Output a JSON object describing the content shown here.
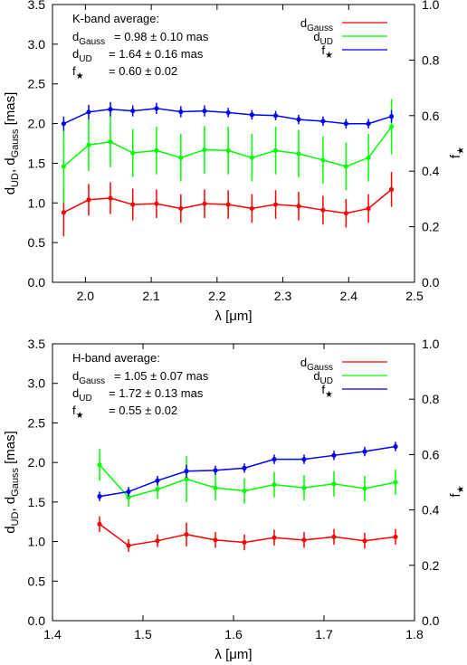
{
  "chart_data": [
    {
      "type": "line",
      "panel": "K-band",
      "xlabel": "λ [μm]",
      "ylabel": "d_UD, d_Gauss [mas]",
      "y2label": "f★",
      "xlim": [
        1.95,
        2.5
      ],
      "ylim": [
        0,
        3.5
      ],
      "y2lim": [
        0,
        1.0
      ],
      "xticks": [
        "2.0",
        "2.1",
        "2.2",
        "2.3",
        "2.4",
        "2.5"
      ],
      "yticks": [
        "0.0",
        "0.5",
        "1.0",
        "1.5",
        "2.0",
        "2.5",
        "3.0",
        "3.5"
      ],
      "y2ticks": [
        "0.0",
        "0.2",
        "0.4",
        "0.6",
        "0.8",
        "1.0"
      ],
      "annotation": {
        "title": "K-band average:",
        "lines": [
          {
            "sym": "d",
            "sub": "Gauss",
            "text": "= 0.98 ± 0.10 mas"
          },
          {
            "sym": "d",
            "sub": "UD",
            "text": "= 1.64  ± 0.16 mas"
          },
          {
            "sym": "f",
            "sub": "★",
            "text": "= 0.60 ± 0.02"
          }
        ]
      },
      "legend_position": "top-right",
      "x": [
        1.967,
        2.005,
        2.038,
        2.072,
        2.108,
        2.145,
        2.181,
        2.217,
        2.253,
        2.289,
        2.324,
        2.361,
        2.396,
        2.43,
        2.465
      ],
      "series": [
        {
          "name": "d_Gauss",
          "label": "d",
          "sub": "Gauss",
          "color": "#ff0000",
          "axis": "left",
          "y": [
            0.88,
            1.04,
            1.06,
            0.98,
            0.99,
            0.93,
            0.99,
            0.98,
            0.93,
            0.98,
            0.96,
            0.91,
            0.87,
            0.93,
            1.17
          ],
          "err": [
            0.3,
            0.2,
            0.2,
            0.2,
            0.18,
            0.18,
            0.18,
            0.18,
            0.18,
            0.18,
            0.18,
            0.18,
            0.18,
            0.18,
            0.22
          ]
        },
        {
          "name": "d_UD",
          "label": "d",
          "sub": "UD",
          "color": "#00ff00",
          "axis": "left",
          "y": [
            1.46,
            1.73,
            1.77,
            1.63,
            1.66,
            1.57,
            1.67,
            1.66,
            1.57,
            1.66,
            1.62,
            1.54,
            1.46,
            1.57,
            1.96
          ],
          "err": [
            0.46,
            0.33,
            0.32,
            0.3,
            0.3,
            0.3,
            0.3,
            0.3,
            0.3,
            0.3,
            0.3,
            0.3,
            0.3,
            0.3,
            0.35
          ]
        },
        {
          "name": "f★",
          "label": "f",
          "sub": "★",
          "color": "#0000ff",
          "axis": "right",
          "y": [
            0.571,
            0.613,
            0.623,
            0.617,
            0.626,
            0.614,
            0.617,
            0.611,
            0.603,
            0.6,
            0.586,
            0.58,
            0.571,
            0.571,
            0.597
          ],
          "err": [
            0.026,
            0.026,
            0.026,
            0.02,
            0.02,
            0.02,
            0.02,
            0.017,
            0.017,
            0.017,
            0.017,
            0.017,
            0.017,
            0.017,
            0.023
          ]
        }
      ]
    },
    {
      "type": "line",
      "panel": "H-band",
      "xlabel": "λ [μm]",
      "ylabel": "d_UD, d_Gauss [mas]",
      "y2label": "f★",
      "xlim": [
        1.4,
        1.8
      ],
      "ylim": [
        0,
        3.5
      ],
      "y2lim": [
        0,
        1.0
      ],
      "xticks": [
        "1.4",
        "1.5",
        "1.6",
        "1.7",
        "1.8"
      ],
      "yticks": [
        "0.0",
        "0.5",
        "1.0",
        "1.5",
        "2.0",
        "2.5",
        "3.0",
        "3.5"
      ],
      "y2ticks": [
        "0.0",
        "0.2",
        "0.4",
        "0.6",
        "0.8",
        "1.0"
      ],
      "annotation": {
        "title": "H-band average:",
        "lines": [
          {
            "sym": "d",
            "sub": "Gauss",
            "text": "= 1.05 ± 0.07 mas"
          },
          {
            "sym": "d",
            "sub": "UD",
            "text": "= 1.72 ± 0.13 mas"
          },
          {
            "sym": "f",
            "sub": "★",
            "text": "= 0.55 ± 0.02"
          }
        ]
      },
      "legend_position": "top-right",
      "x": [
        1.452,
        1.484,
        1.516,
        1.548,
        1.58,
        1.612,
        1.645,
        1.678,
        1.711,
        1.745,
        1.779
      ],
      "series": [
        {
          "name": "d_Gauss",
          "label": "d",
          "sub": "Gauss",
          "color": "#ff0000",
          "axis": "left",
          "y": [
            1.22,
            0.95,
            1.01,
            1.09,
            1.02,
            0.99,
            1.05,
            1.02,
            1.06,
            1.01,
            1.06
          ],
          "err": [
            0.1,
            0.08,
            0.08,
            0.15,
            0.1,
            0.1,
            0.1,
            0.1,
            0.1,
            0.1,
            0.1
          ]
        },
        {
          "name": "d_UD",
          "label": "d",
          "sub": "UD",
          "color": "#00ff00",
          "axis": "left",
          "y": [
            1.97,
            1.56,
            1.66,
            1.79,
            1.68,
            1.64,
            1.72,
            1.68,
            1.73,
            1.67,
            1.75
          ],
          "err": [
            0.2,
            0.12,
            0.12,
            0.29,
            0.16,
            0.16,
            0.16,
            0.16,
            0.16,
            0.16,
            0.16
          ]
        },
        {
          "name": "f★",
          "label": "f",
          "sub": "★",
          "color": "#0000ff",
          "axis": "right",
          "y": [
            0.449,
            0.466,
            0.506,
            0.54,
            0.543,
            0.551,
            0.583,
            0.583,
            0.597,
            0.611,
            0.629
          ],
          "err": [
            0.017,
            0.017,
            0.017,
            0.023,
            0.017,
            0.017,
            0.017,
            0.017,
            0.017,
            0.017,
            0.017
          ]
        }
      ]
    }
  ]
}
